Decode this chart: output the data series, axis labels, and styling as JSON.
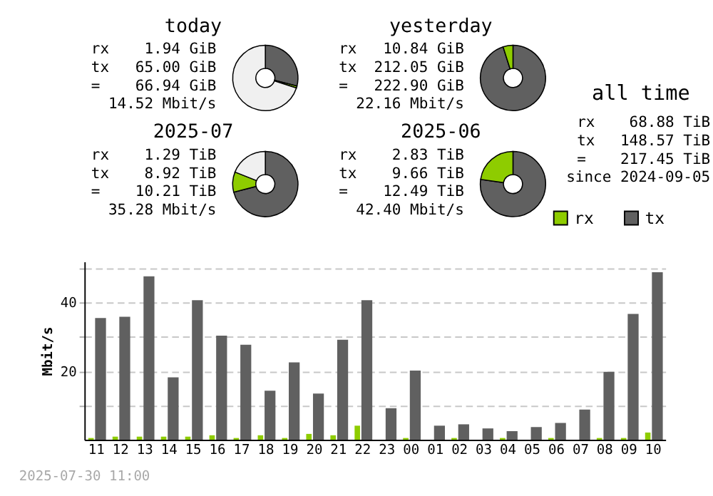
{
  "chart_data": [
    {
      "type": "donut",
      "title": "today",
      "categories": [
        null,
        null,
        null
      ],
      "values": [
        29,
        1,
        70
      ],
      "colors": [
        "#606060",
        "#8ecc00",
        "#f0f0f0"
      ],
      "annotations": [
        "rx 1.94 GiB",
        "tx 65.00 GiB",
        "= 66.94 GiB",
        "14.52 Mbit/s"
      ]
    },
    {
      "type": "donut",
      "title": "yesterday",
      "categories": [
        null,
        null
      ],
      "values": [
        95.1,
        4.9
      ],
      "colors": [
        "#606060",
        "#8ecc00"
      ],
      "annotations": [
        "rx 10.84 GiB",
        "tx 212.05 GiB",
        "= 222.90 GiB",
        "22.16 Mbit/s"
      ]
    },
    {
      "type": "donut",
      "title": "2025-07",
      "categories": [
        null,
        null,
        null
      ],
      "values": [
        71,
        10,
        19
      ],
      "colors": [
        "#606060",
        "#8ecc00",
        "#f0f0f0"
      ],
      "annotations": [
        "rx 1.29 TiB",
        "tx 8.92 TiB",
        "= 10.21 TiB",
        "35.28 Mbit/s"
      ]
    },
    {
      "type": "donut",
      "title": "2025-06",
      "categories": [
        null,
        null
      ],
      "values": [
        77.3,
        22.7
      ],
      "colors": [
        "#606060",
        "#8ecc00"
      ],
      "annotations": [
        "rx 2.83 TiB",
        "tx 9.66 TiB",
        "= 12.49 TiB",
        "42.40 Mbit/s"
      ]
    },
    {
      "type": "other",
      "title": "all time",
      "annotations": [
        "rx 68.88 TiB",
        "tx 148.57 TiB",
        "= 217.45 TiB",
        "since 2024-09-05"
      ]
    },
    {
      "type": "bar",
      "ylabel": "Mbit/s",
      "categories": [
        "11",
        "12",
        "13",
        "14",
        "15",
        "16",
        "17",
        "18",
        "19",
        "20",
        "21",
        "22",
        "23",
        "00",
        "01",
        "02",
        "03",
        "04",
        "05",
        "06",
        "07",
        "08",
        "09",
        "10"
      ],
      "series": [
        {
          "name": "rx",
          "color": "#8ecc00",
          "values": [
            0.5,
            0.9,
            0.9,
            0.9,
            0.9,
            1.3,
            0.5,
            1.3,
            0.5,
            1.7,
            1.3,
            4.1,
            0,
            0.5,
            0,
            0.5,
            0,
            0.5,
            0,
            0.5,
            0,
            0.5,
            0.5,
            2.1
          ]
        },
        {
          "name": "tx",
          "color": "#606060",
          "values": [
            35.5,
            35.9,
            47.7,
            18.2,
            40.7,
            30.4,
            27.7,
            14.3,
            22.6,
            13.5,
            29.2,
            40.7,
            9.2,
            20.2,
            4.1,
            4.5,
            3.3,
            2.5,
            3.7,
            4.9,
            8.8,
            19.8,
            36.7,
            48.9
          ]
        }
      ],
      "ylim": [
        0,
        52
      ],
      "yticks": [
        {
          "value": 10,
          "label": null
        },
        20,
        {
          "value": 30,
          "label": null
        },
        40,
        {
          "value": 50,
          "label": null
        }
      ],
      "grid": "y",
      "legend": "top right",
      "annotations": [
        "2025-07-30 11:00"
      ]
    }
  ]
}
